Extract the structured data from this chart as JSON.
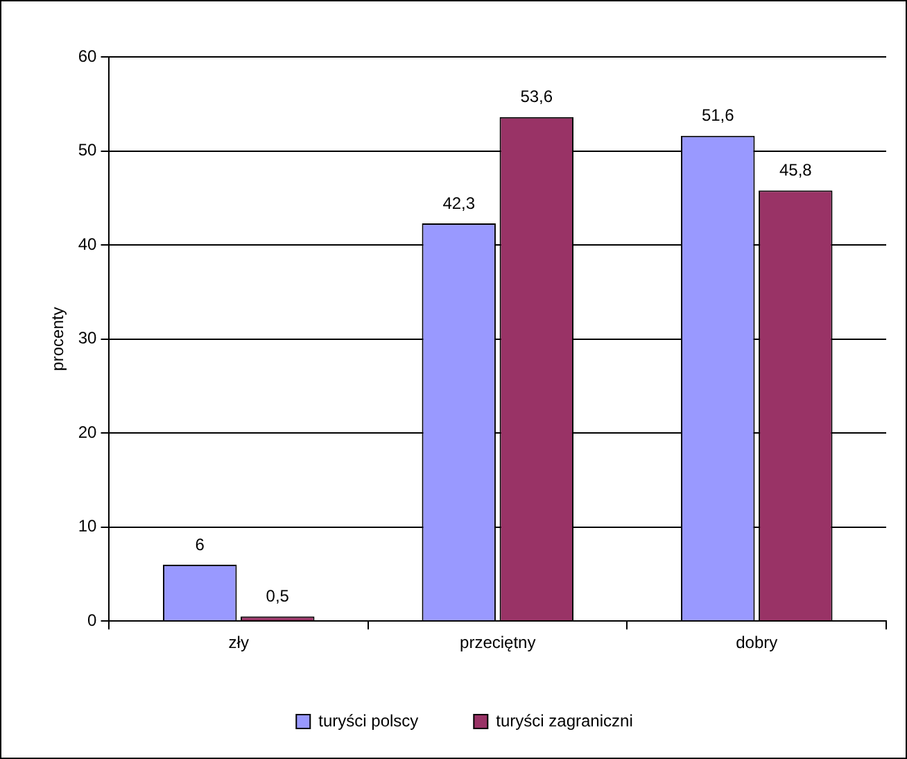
{
  "chart_data": {
    "type": "bar",
    "ylabel": "procenty",
    "categories": [
      "zły",
      "przeciętny",
      "dobry"
    ],
    "series": [
      {
        "name": "turyści polscy",
        "color": "#9999ff",
        "values": [
          6,
          42.3,
          51.6
        ],
        "value_labels": [
          "6",
          "42,3",
          "51,6"
        ]
      },
      {
        "name": "turyści zagraniczni",
        "color": "#993366",
        "values": [
          0.5,
          53.6,
          45.8
        ],
        "value_labels": [
          "0,5",
          "53,6",
          "45,8"
        ]
      }
    ],
    "ylim": [
      0,
      60
    ],
    "yticks": [
      0,
      10,
      20,
      30,
      40,
      50,
      60
    ],
    "grid": "y",
    "legend": "bottom"
  }
}
